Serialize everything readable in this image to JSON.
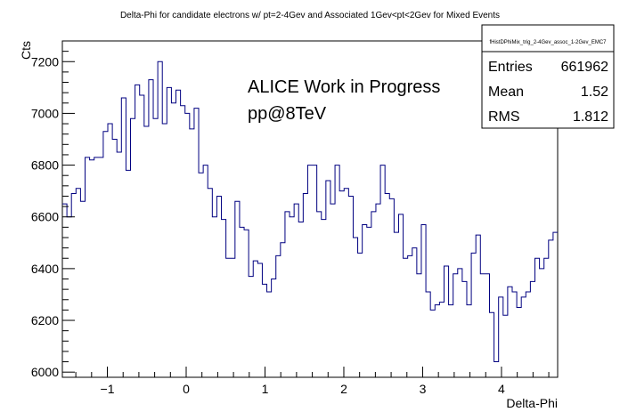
{
  "chart_data": {
    "type": "line",
    "title": "Delta-Phi for candidate electrons w/ pt=2-4Gev and Associated 1Gev<pt<2Gev for Mixed Events",
    "xlabel": "Delta-Phi",
    "ylabel": "Cts",
    "xlim": [
      -1.5708,
      4.7124
    ],
    "ylim": [
      5980,
      7280
    ],
    "x_ticks": [
      -1,
      0,
      1,
      2,
      3,
      4
    ],
    "y_ticks": [
      6000,
      6200,
      6400,
      6600,
      6800,
      7000,
      7200
    ],
    "annotations": [
      "ALICE Work in Progress",
      "pp@8TeV"
    ],
    "stats": {
      "name": "fHistDPhiMix_trig_2-4Gev_assoc_1-2Gev_EMC7",
      "entries_label": "Entries",
      "entries": "661962",
      "mean_label": "Mean",
      "mean": "1.52",
      "rms_label": "RMS",
      "rms": "1.812"
    },
    "colors": {
      "line": "#000080",
      "axis": "#000000"
    },
    "series": [
      {
        "values": [
          6650,
          6600,
          6690,
          6710,
          6660,
          6830,
          6820,
          6830,
          6830,
          6930,
          6960,
          6900,
          6850,
          7060,
          6780,
          6980,
          7110,
          7070,
          6950,
          7130,
          6980,
          7200,
          6960,
          7100,
          7040,
          7090,
          7030,
          7000,
          6940,
          7020,
          6770,
          6800,
          6710,
          6600,
          6680,
          6590,
          6440,
          6440,
          6660,
          6560,
          6550,
          6370,
          6430,
          6420,
          6340,
          6310,
          6360,
          6450,
          6500,
          6620,
          6600,
          6650,
          6580,
          6690,
          6800,
          6800,
          6620,
          6590,
          6740,
          6650,
          6800,
          6700,
          6710,
          6680,
          6520,
          6460,
          6570,
          6560,
          6620,
          6650,
          6800,
          6690,
          6670,
          6540,
          6610,
          6440,
          6450,
          6480,
          6380,
          6570,
          6310,
          6240,
          6260,
          6270,
          6410,
          6260,
          6380,
          6400,
          6350,
          6260,
          6460,
          6530,
          6380,
          6380,
          6230,
          6040,
          6290,
          6220,
          6330,
          6310,
          6250,
          6290,
          6310,
          6350,
          6440,
          6400,
          6440,
          6510,
          6540
        ]
      }
    ]
  }
}
